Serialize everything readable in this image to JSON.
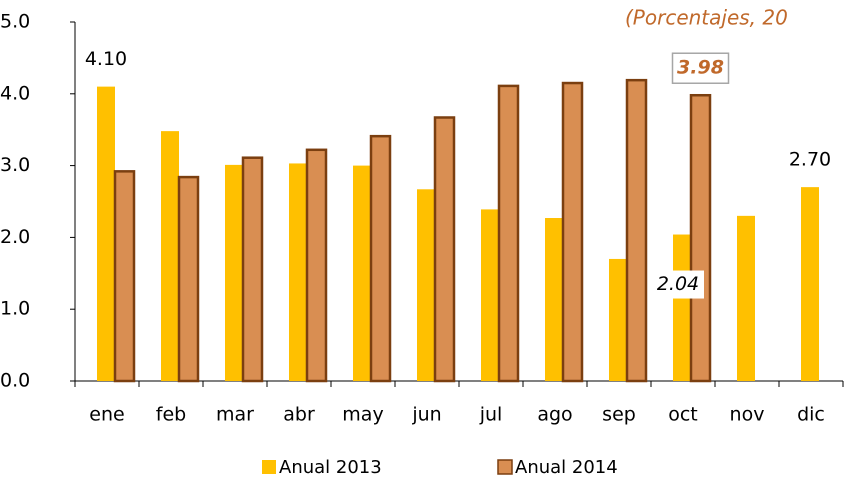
{
  "chart_data": {
    "type": "bar",
    "subtitle": "(Porcentajes, 20",
    "categories": [
      "ene",
      "feb",
      "mar",
      "abr",
      "may",
      "jun",
      "jul",
      "ago",
      "sep",
      "oct",
      "nov",
      "dic"
    ],
    "series": [
      {
        "name": "Anual 2013",
        "color": "#ffc000",
        "values": [
          4.1,
          3.48,
          3.01,
          3.03,
          3.0,
          2.67,
          2.39,
          2.27,
          1.7,
          2.04,
          2.3,
          2.7
        ],
        "value_labels": [
          "4.10",
          null,
          null,
          null,
          null,
          null,
          null,
          null,
          null,
          "2.04",
          null,
          "2.70"
        ]
      },
      {
        "name": "Anual 2014",
        "color": "#d98e52",
        "values": [
          2.92,
          2.84,
          3.11,
          3.22,
          3.41,
          3.67,
          4.11,
          4.15,
          4.19,
          3.98,
          null,
          null
        ],
        "value_labels": [
          null,
          null,
          null,
          null,
          null,
          null,
          null,
          null,
          null,
          "3.98",
          null,
          null
        ]
      }
    ],
    "ylim": [
      0,
      5
    ],
    "yticks": [
      {
        "value": 0,
        "label": "0.0"
      },
      {
        "value": 1,
        "label": "1.0"
      },
      {
        "value": 2,
        "label": "2.0"
      },
      {
        "value": 3,
        "label": "3.0"
      },
      {
        "value": 4,
        "label": "4.0"
      },
      {
        "value": 5,
        "label": "5.0"
      }
    ],
    "legend": "bottom"
  }
}
